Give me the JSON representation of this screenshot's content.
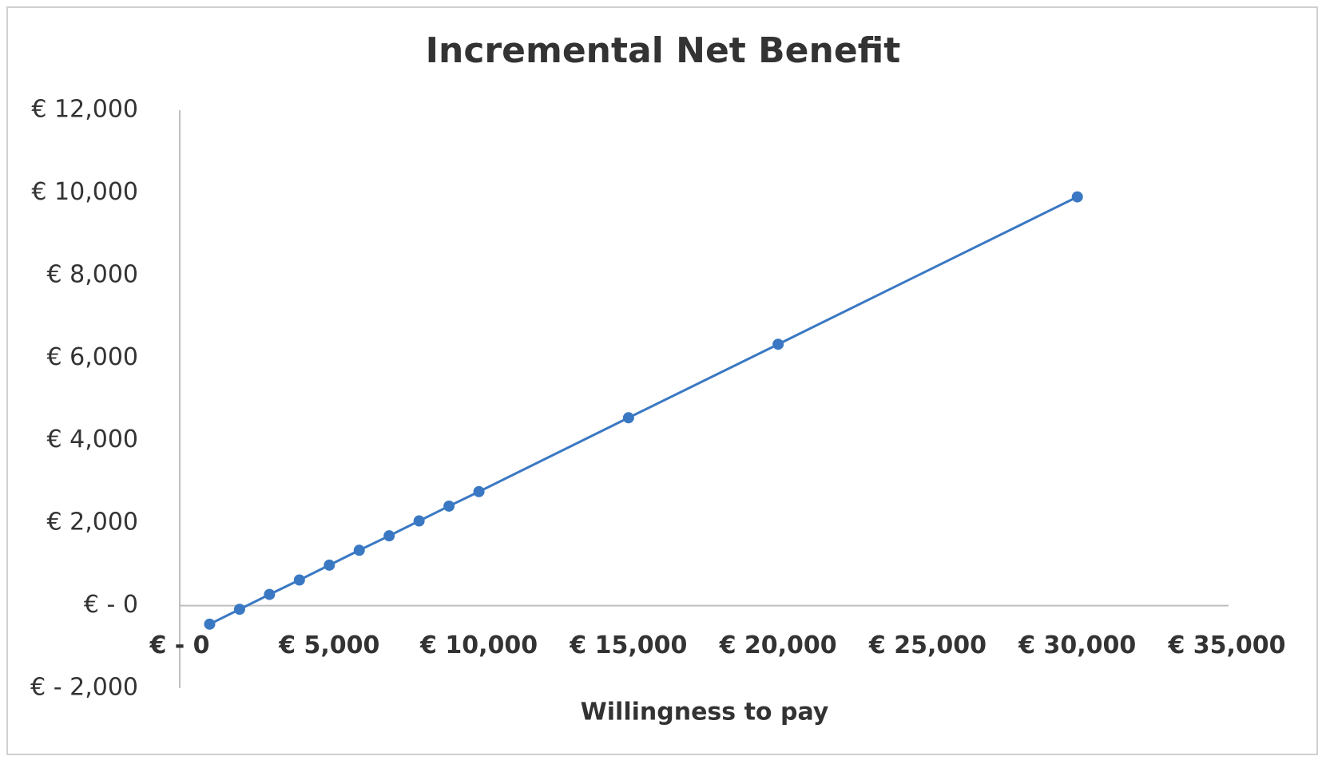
{
  "chart_data": {
    "type": "line",
    "title": "Incremental Net Benefit",
    "x_label": "Willingness to pay",
    "x": [
      1000,
      2000,
      3000,
      4000,
      5000,
      6000,
      7000,
      8000,
      9000,
      10000,
      15000,
      20000,
      30000
    ],
    "series": [
      {
        "name": "Incremental net benefit",
        "color": "#3a78c3",
        "values": [
          -450,
          -90,
          270,
          620,
          980,
          1340,
          1690,
          2050,
          2410,
          2760,
          4550,
          6330,
          9900
        ]
      }
    ],
    "xlim": [
      0,
      35000
    ],
    "xticks": [
      {
        "value": 0,
        "label": "€ - 0"
      },
      {
        "value": 5000,
        "label": "€ 5,000"
      },
      {
        "value": 10000,
        "label": "€ 10,000"
      },
      {
        "value": 15000,
        "label": "€ 15,000"
      },
      {
        "value": 20000,
        "label": "€ 20,000"
      },
      {
        "value": 25000,
        "label": "€ 25,000"
      },
      {
        "value": 30000,
        "label": "€ 30,000"
      },
      {
        "value": 35000,
        "label": "€ 35,000"
      }
    ],
    "ylim": [
      -2000,
      12000
    ],
    "yticks": [
      {
        "value": -2000,
        "label": "€ - 2,000"
      },
      {
        "value": 0,
        "label": "€ - 0"
      },
      {
        "value": 2000,
        "label": "€ 2,000"
      },
      {
        "value": 4000,
        "label": "€ 4,000"
      },
      {
        "value": 6000,
        "label": "€ 6,000"
      },
      {
        "value": 8000,
        "label": "€ 8,000"
      },
      {
        "value": 10000,
        "label": "€ 10,000"
      },
      {
        "value": 12000,
        "label": "€ 12,000"
      }
    ],
    "grid": false,
    "legend": false
  }
}
